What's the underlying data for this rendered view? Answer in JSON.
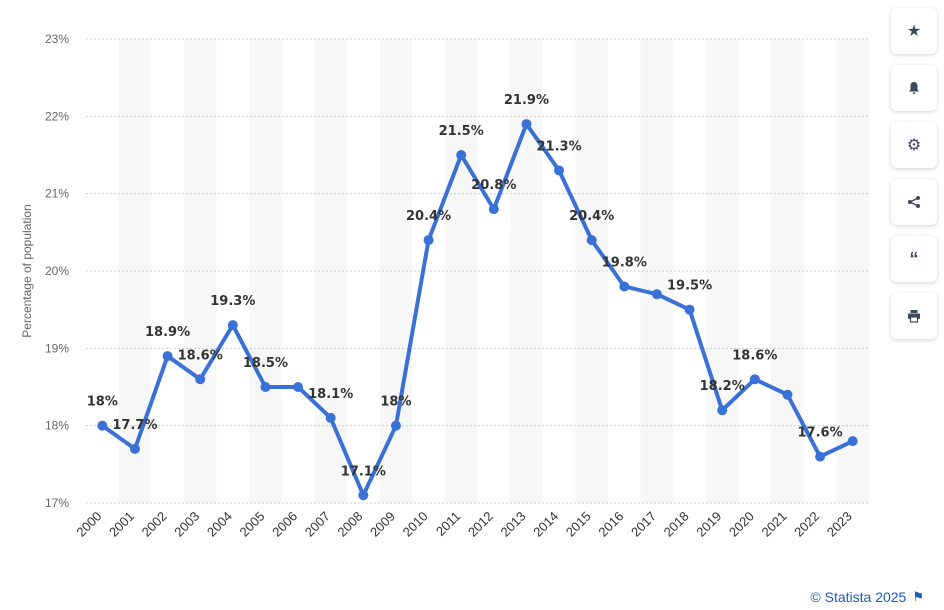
{
  "chart_data": {
    "type": "line",
    "categories": [
      "2000",
      "2001",
      "2002",
      "2003",
      "2004",
      "2005",
      "2006",
      "2007",
      "2008",
      "2009",
      "2010",
      "2011",
      "2012",
      "2013",
      "2014",
      "2015",
      "2016",
      "2017",
      "2018",
      "2019",
      "2020",
      "2021",
      "2022",
      "2023"
    ],
    "series": [
      {
        "values": [
          18,
          17.7,
          18.9,
          18.6,
          19.3,
          18.5,
          18.5,
          18.1,
          17.1,
          18,
          20.4,
          21.5,
          20.8,
          21.9,
          21.3,
          20.4,
          19.8,
          19.7,
          19.5,
          18.2,
          18.6,
          18.4,
          17.6,
          17.8
        ],
        "color": "#3a71d6"
      }
    ],
    "data_labels": [
      "18%",
      "17.7%",
      "18.9%",
      "18.6%",
      "19.3%",
      "18.5%",
      "",
      "18.1%",
      "17.1%",
      "18%",
      "20.4%",
      "21.5%",
      "20.8%",
      "21.9%",
      "21.3%",
      "20.4%",
      "19.8%",
      "",
      "19.5%",
      "18.2%",
      "18.6%",
      "",
      "17.6%",
      ""
    ],
    "ylabel": "Percentage of population",
    "ylim": [
      17,
      23
    ],
    "yticks": [
      "17%",
      "18%",
      "19%",
      "20%",
      "21%",
      "22%",
      "23%"
    ],
    "grid": true
  },
  "toolbar": {
    "icons": [
      "star-icon",
      "bell-icon",
      "gear-icon",
      "share-icon",
      "quote-icon",
      "print-icon"
    ]
  },
  "credit": {
    "text": "© Statista 2025"
  }
}
